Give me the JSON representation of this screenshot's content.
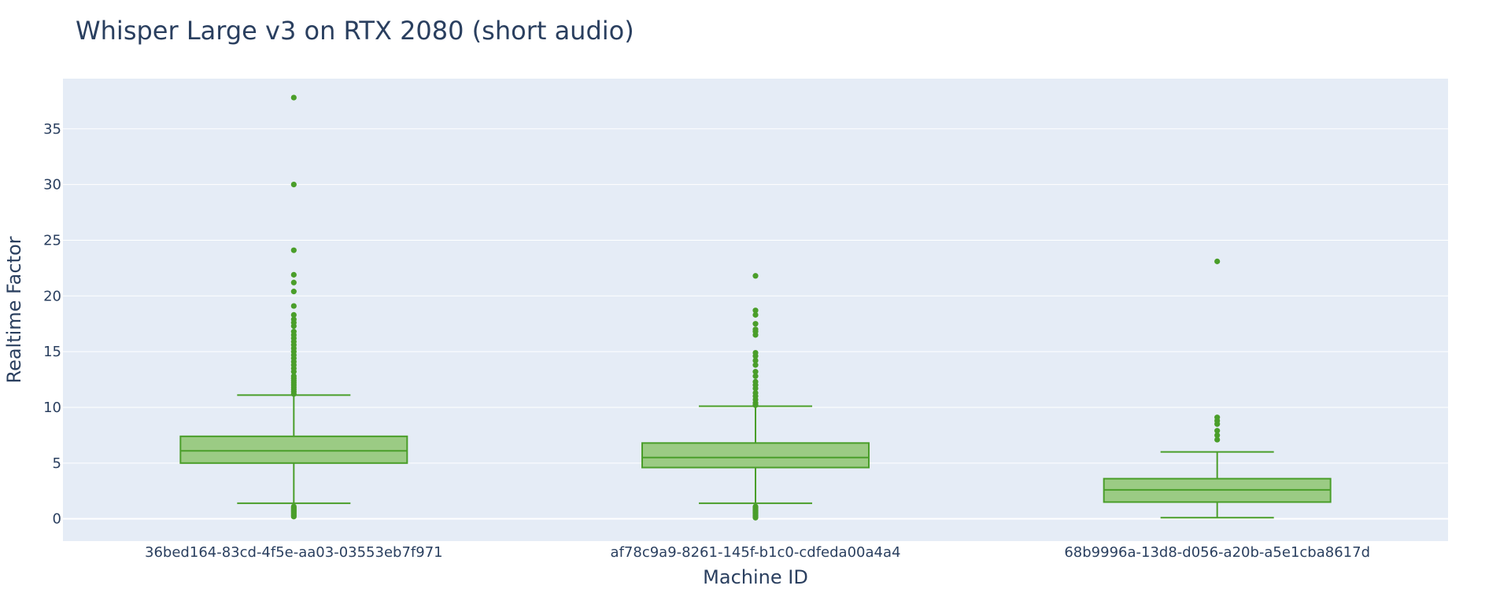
{
  "colors": {
    "plot_background": "#e5ecf6",
    "grid": "#ffffff",
    "box_line": "#4a9e2a",
    "box_fill": "#9bcb84",
    "text": "#2a3f5f"
  },
  "chart_data": {
    "type": "box",
    "title": "Whisper Large v3 on RTX 2080 (short audio)",
    "xlabel": "Machine ID",
    "ylabel": "Realtime Factor",
    "ylim": [
      -2,
      39.5
    ],
    "yticks": [
      0,
      5,
      10,
      15,
      20,
      25,
      30,
      35
    ],
    "grid": true,
    "legend": "none",
    "categories": [
      "36bed164-83cd-4f5e-aa03-03553eb7f971",
      "af78c9a9-8261-145f-b1c0-cdfeda00a4a4",
      "68b9996a-13d8-d056-a20b-a5e1cba8617d"
    ],
    "boxes": [
      {
        "lower_fence": 1.4,
        "q1": 5.0,
        "median": 6.1,
        "q3": 7.4,
        "upper_fence": 11.1,
        "outliers": [
          0.2,
          0.3,
          0.4,
          0.5,
          0.6,
          0.7,
          0.8,
          0.9,
          1.0,
          1.1,
          11.2,
          11.4,
          11.6,
          11.8,
          12.0,
          12.2,
          12.4,
          12.6,
          12.8,
          13.2,
          13.5,
          13.8,
          14.1,
          14.4,
          14.7,
          15.0,
          15.3,
          15.6,
          15.9,
          16.2,
          16.5,
          16.8,
          17.3,
          17.6,
          17.9,
          18.3,
          19.1,
          20.4,
          21.2,
          21.9,
          24.1,
          30.0,
          37.8
        ]
      },
      {
        "lower_fence": 1.4,
        "q1": 4.6,
        "median": 5.5,
        "q3": 6.8,
        "upper_fence": 10.1,
        "outliers": [
          0.1,
          0.2,
          0.3,
          0.4,
          0.5,
          0.6,
          0.7,
          0.8,
          0.9,
          1.0,
          1.1,
          10.2,
          10.4,
          10.7,
          11.0,
          11.3,
          11.7,
          12.0,
          12.3,
          12.8,
          13.2,
          13.8,
          14.2,
          14.6,
          14.9,
          16.5,
          16.8,
          17.0,
          17.5,
          18.3,
          18.7,
          21.8
        ]
      },
      {
        "lower_fence": 0.1,
        "q1": 1.5,
        "median": 2.6,
        "q3": 3.6,
        "upper_fence": 6.0,
        "outliers": [
          7.1,
          7.5,
          7.9,
          8.5,
          8.8,
          9.1,
          23.1
        ]
      }
    ]
  }
}
